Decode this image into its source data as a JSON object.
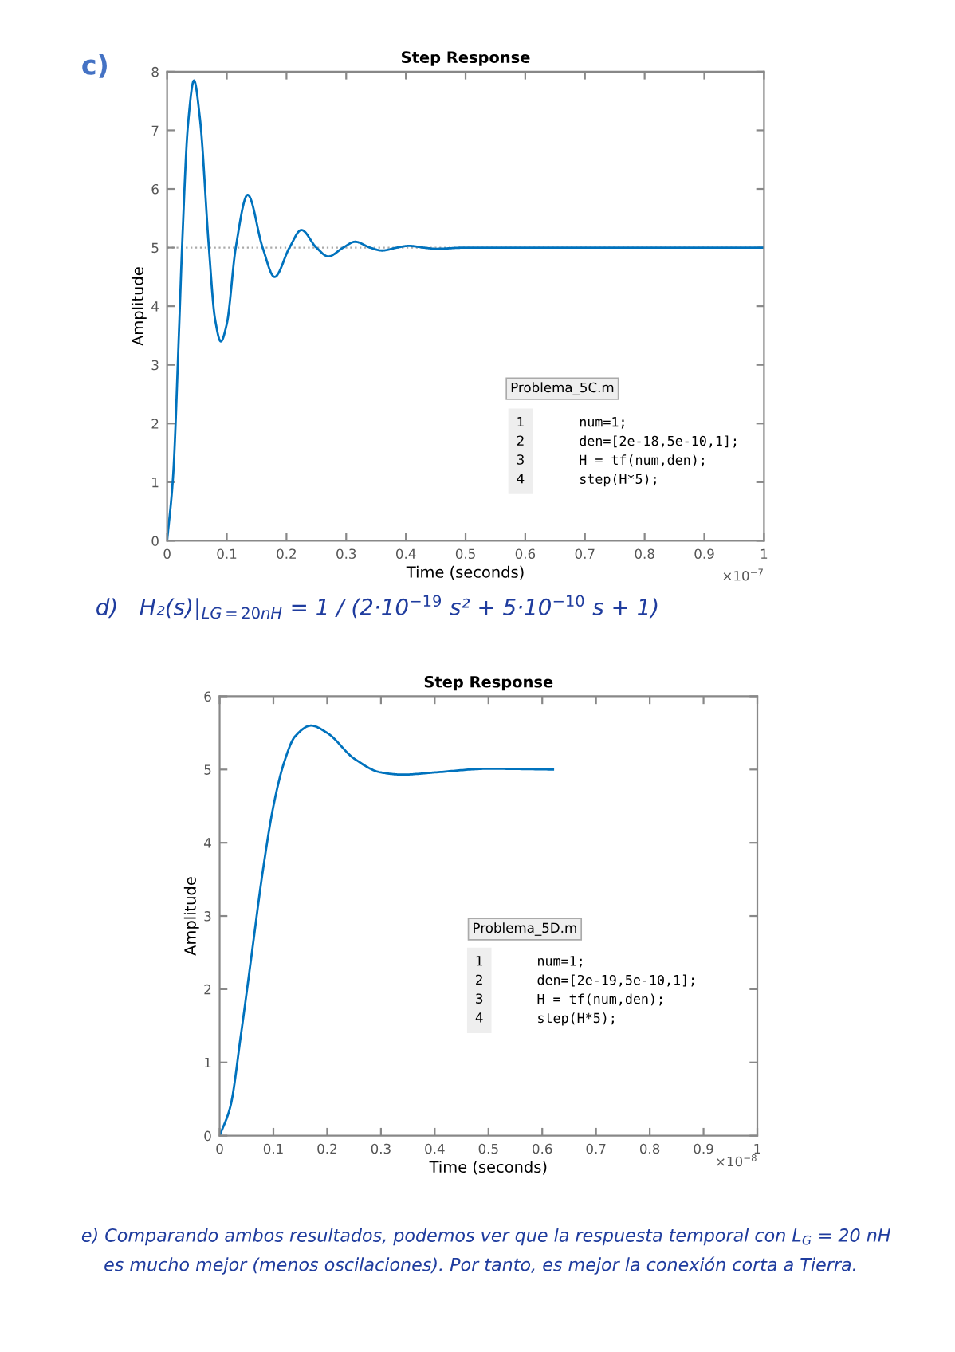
{
  "chart_data": [
    {
      "type": "line",
      "title": "Step Response",
      "xlabel": "Time (seconds)",
      "ylabel": "Amplitude",
      "x": [
        0,
        0.01,
        0.02,
        0.025,
        0.035,
        0.045,
        0.055,
        0.07,
        0.08,
        0.09,
        0.1,
        0.115,
        0.135,
        0.16,
        0.18,
        0.205,
        0.225,
        0.25,
        0.27,
        0.295,
        0.315,
        0.34,
        0.36,
        0.385,
        0.405,
        0.43,
        0.45,
        0.5,
        1.0
      ],
      "series": [
        {
          "color": "#0072bd",
          "values": [
            0,
            1.1,
            3.6,
            5,
            7.1,
            7.85,
            7.2,
            5,
            3.8,
            3.4,
            3.7,
            5,
            5.9,
            5,
            4.5,
            5,
            5.3,
            5,
            4.85,
            5,
            5.1,
            5,
            4.95,
            5,
            5.03,
            5,
            4.98,
            5,
            5
          ]
        }
      ],
      "xlim": [
        0,
        1
      ],
      "xticks": [
        0,
        0.1,
        0.2,
        0.3,
        0.4,
        0.5,
        0.6,
        0.7,
        0.8,
        0.9,
        1
      ],
      "ylim": [
        0,
        8
      ],
      "yticks": [
        0,
        1,
        2,
        3,
        4,
        5,
        6,
        7,
        8
      ],
      "ref_lines": [
        {
          "axis": "y",
          "value": 5,
          "color": "#aaaaaa",
          "line_style": "dotted"
        }
      ],
      "grid": false,
      "legend": false,
      "line_style": "solid",
      "marker": "none",
      "annotations": [
        "c)",
        "×10$^{−7}$",
        "Problema_5C.m",
        "1\n2\n3\n4",
        "num=1;\nden=[2e-18,5e-10,1];\nH = tf(num,den);\nstep(H*5);"
      ]
    },
    {
      "type": "line",
      "title": "Step Response",
      "xlabel": "Time (seconds)",
      "ylabel": "Amplitude",
      "x": [
        0,
        0.02,
        0.04,
        0.06,
        0.08,
        0.1,
        0.12,
        0.14,
        0.17,
        0.2,
        0.25,
        0.3,
        0.34,
        0.4,
        0.5,
        0.62
      ],
      "series": [
        {
          "color": "#0072bd",
          "values": [
            0,
            0.4,
            1.4,
            2.5,
            3.6,
            4.5,
            5.1,
            5.45,
            5.6,
            5.5,
            5.15,
            4.96,
            4.93,
            4.96,
            5.01,
            5
          ]
        }
      ],
      "xlim": [
        0,
        1
      ],
      "xticks": [
        0,
        0.1,
        0.2,
        0.3,
        0.4,
        0.5,
        0.6,
        0.7,
        0.8,
        0.9,
        1
      ],
      "ylim": [
        0,
        6
      ],
      "yticks": [
        0,
        1,
        2,
        3,
        4,
        5,
        6
      ],
      "grid": false,
      "legend": false,
      "line_style": "solid",
      "marker": "none",
      "annotations": [
        "×10$^{−8}$",
        "Problema_5D.m",
        "1\n2\n3\n4",
        "num=1;\nden=[2e-19,5e-10,1];\nH = tf(num,den);\nstep(H*5);",
        "d)   H₂(s)|$_{LG=20nH}$ = 1 / (2·10$^{−19}$ s² + 5·10$^{−10}$ s + 1)",
        "e) Comparando ambos resultados, podemos ver que la respuesta temporal con L$_{G}$ = 20 nH\n    es mucho mejor (menos oscilaciones). Por tanto, es mejor la conexión corta a Tierra."
      ]
    }
  ]
}
